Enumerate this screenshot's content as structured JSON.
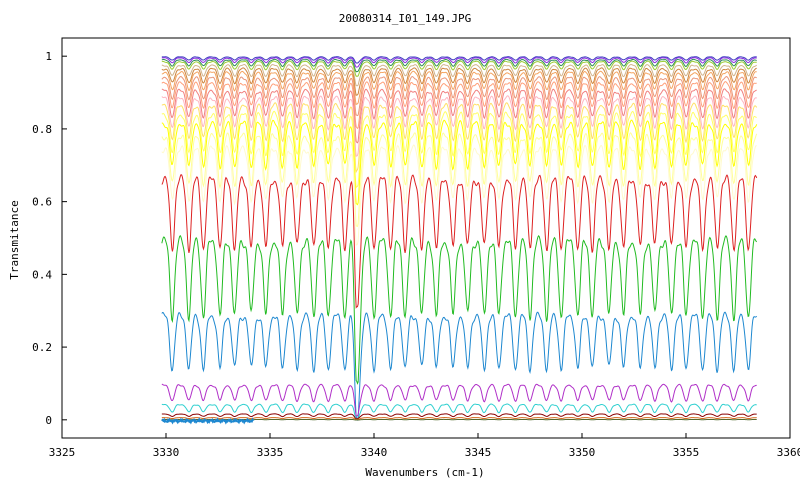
{
  "chart_data": {
    "type": "line",
    "title": "20080314_I01_149.JPG",
    "xlabel": "Wavenumbers (cm-1)",
    "ylabel": "Transmitance",
    "xlim": [
      3325,
      3360
    ],
    "ylim": [
      -0.05,
      1.05
    ],
    "x_ticks": [
      "3325",
      "3330",
      "3335",
      "3340",
      "3345",
      "3350",
      "3355",
      "3360"
    ],
    "y_ticks": [
      "0",
      "0.2",
      "0.4",
      "0.6",
      "0.8",
      "1"
    ],
    "grid": false,
    "legend": "none",
    "x_range_data": [
      3329.8,
      3358.4
    ],
    "dip_positions": [
      3330.3,
      3331.1,
      3331.8,
      3332.6,
      3333.3,
      3334.1,
      3334.8,
      3335.6,
      3336.3,
      3337.1,
      3337.8,
      3338.6,
      3339.3,
      3340.0,
      3340.8,
      3341.5,
      3342.3,
      3343.0,
      3343.8,
      3344.5,
      3345.3,
      3346.0,
      3346.8,
      3347.5,
      3348.3,
      3349.0,
      3349.8,
      3350.5,
      3351.3,
      3352.0,
      3352.8,
      3353.5,
      3354.3,
      3355.0,
      3355.8,
      3356.5,
      3357.3,
      3358.0
    ],
    "series": [
      {
        "baseline": 0.998,
        "amplitude": 0.01,
        "color": "#3f3fbf"
      },
      {
        "baseline": 0.995,
        "amplitude": 0.015,
        "color": "#8a2be2"
      },
      {
        "baseline": 0.99,
        "amplitude": 0.02,
        "color": "#2e8b57"
      },
      {
        "baseline": 0.985,
        "amplitude": 0.025,
        "color": "#9acd32"
      },
      {
        "baseline": 0.975,
        "amplitude": 0.035,
        "color": "#d2b48c"
      },
      {
        "baseline": 0.965,
        "amplitude": 0.045,
        "color": "#cd853f"
      },
      {
        "baseline": 0.955,
        "amplitude": 0.055,
        "color": "#f4a460"
      },
      {
        "baseline": 0.94,
        "amplitude": 0.065,
        "color": "#e9967a"
      },
      {
        "baseline": 0.925,
        "amplitude": 0.075,
        "color": "#ffa07a"
      },
      {
        "baseline": 0.905,
        "amplitude": 0.085,
        "color": "#f08080"
      },
      {
        "baseline": 0.885,
        "amplitude": 0.095,
        "color": "#ffb6c1"
      },
      {
        "baseline": 0.865,
        "amplitude": 0.11,
        "color": "#ffe066"
      },
      {
        "baseline": 0.84,
        "amplitude": 0.125,
        "color": "#ffff66"
      },
      {
        "baseline": 0.815,
        "amplitude": 0.14,
        "color": "#ffff00"
      },
      {
        "baseline": 0.78,
        "amplitude": 0.155,
        "color": "#ffff99"
      },
      {
        "baseline": 0.745,
        "amplitude": 0.165,
        "color": "#fffacd"
      },
      {
        "baseline": 0.66,
        "amplitude": 0.22,
        "color": "#dd2222"
      },
      {
        "baseline": 0.49,
        "amplitude": 0.24,
        "color": "#22bb22"
      },
      {
        "baseline": 0.285,
        "amplitude": 0.17,
        "color": "#1e88d0"
      },
      {
        "baseline": 0.095,
        "amplitude": 0.05,
        "color": "#b030c8"
      },
      {
        "baseline": 0.042,
        "amplitude": 0.025,
        "color": "#30d0d0"
      },
      {
        "baseline": 0.016,
        "amplitude": 0.008,
        "color": "#8b0000"
      },
      {
        "baseline": 0.006,
        "amplitude": 0.003,
        "color": "#d2691e"
      },
      {
        "baseline": 0.001,
        "amplitude": 0.001,
        "color": "#556b2f"
      }
    ],
    "noise_segment": {
      "x_start": 3329.8,
      "x_end": 3334.2,
      "color": "#1e88d0"
    }
  }
}
